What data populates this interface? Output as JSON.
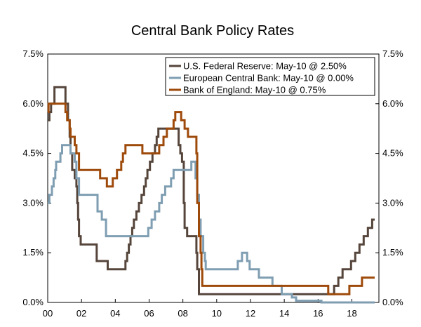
{
  "chart_data": {
    "type": "line",
    "title": "Central Bank Policy Rates",
    "xlabel": "",
    "ylabel": "",
    "xlim": [
      2000,
      2019.6
    ],
    "ylim": [
      0,
      7.5
    ],
    "y_ticks": [
      0,
      1.5,
      3.0,
      4.5,
      6.0,
      7.5
    ],
    "y_tick_labels": [
      "0.0%",
      "1.5%",
      "3.0%",
      "4.5%",
      "6.0%",
      "7.5%"
    ],
    "x_ticks": [
      2000,
      2002,
      2004,
      2006,
      2008,
      2010,
      2012,
      2014,
      2016,
      2018
    ],
    "x_tick_labels": [
      "00",
      "02",
      "04",
      "06",
      "08",
      "10",
      "12",
      "14",
      "16",
      "18"
    ],
    "grid": false,
    "legend_position": "top-right",
    "series": [
      {
        "name": "U.S. Federal Reserve: May-10 @ 2.50%",
        "color": "#55453b",
        "points": [
          [
            2000.0,
            5.5
          ],
          [
            2000.1,
            5.75
          ],
          [
            2000.2,
            6.0
          ],
          [
            2000.4,
            6.5
          ],
          [
            2001.0,
            6.5
          ],
          [
            2001.05,
            6.0
          ],
          [
            2001.2,
            5.5
          ],
          [
            2001.3,
            5.0
          ],
          [
            2001.35,
            4.5
          ],
          [
            2001.45,
            4.0
          ],
          [
            2001.6,
            3.75
          ],
          [
            2001.7,
            3.5
          ],
          [
            2001.75,
            3.0
          ],
          [
            2001.8,
            2.5
          ],
          [
            2001.85,
            2.0
          ],
          [
            2001.95,
            1.75
          ],
          [
            2002.85,
            1.75
          ],
          [
            2002.9,
            1.25
          ],
          [
            2003.5,
            1.25
          ],
          [
            2003.55,
            1.0
          ],
          [
            2004.5,
            1.0
          ],
          [
            2004.6,
            1.25
          ],
          [
            2004.7,
            1.5
          ],
          [
            2004.8,
            1.75
          ],
          [
            2004.9,
            2.0
          ],
          [
            2005.0,
            2.25
          ],
          [
            2005.1,
            2.5
          ],
          [
            2005.25,
            2.75
          ],
          [
            2005.4,
            3.0
          ],
          [
            2005.55,
            3.25
          ],
          [
            2005.7,
            3.5
          ],
          [
            2005.8,
            3.75
          ],
          [
            2005.9,
            4.0
          ],
          [
            2006.05,
            4.25
          ],
          [
            2006.2,
            4.5
          ],
          [
            2006.35,
            4.75
          ],
          [
            2006.45,
            5.0
          ],
          [
            2006.55,
            5.25
          ],
          [
            2007.7,
            5.25
          ],
          [
            2007.75,
            4.75
          ],
          [
            2007.85,
            4.5
          ],
          [
            2007.95,
            4.25
          ],
          [
            2008.05,
            3.0
          ],
          [
            2008.1,
            2.25
          ],
          [
            2008.25,
            2.0
          ],
          [
            2008.75,
            2.0
          ],
          [
            2008.8,
            1.5
          ],
          [
            2008.85,
            1.0
          ],
          [
            2008.95,
            0.25
          ],
          [
            2015.95,
            0.25
          ],
          [
            2016.95,
            0.5
          ],
          [
            2017.2,
            0.75
          ],
          [
            2017.45,
            1.0
          ],
          [
            2017.95,
            1.25
          ],
          [
            2018.2,
            1.5
          ],
          [
            2018.45,
            1.75
          ],
          [
            2018.7,
            2.0
          ],
          [
            2018.95,
            2.25
          ],
          [
            2019.2,
            2.5
          ],
          [
            2019.35,
            2.5
          ]
        ]
      },
      {
        "name": "European Central Bank: May-10 @ 0.00%",
        "color": "#7f9eb2",
        "points": [
          [
            2000.0,
            3.0
          ],
          [
            2000.1,
            3.25
          ],
          [
            2000.25,
            3.5
          ],
          [
            2000.35,
            3.75
          ],
          [
            2000.45,
            4.0
          ],
          [
            2000.5,
            4.25
          ],
          [
            2000.75,
            4.5
          ],
          [
            2000.85,
            4.75
          ],
          [
            2001.35,
            4.5
          ],
          [
            2001.6,
            4.25
          ],
          [
            2001.7,
            3.75
          ],
          [
            2001.85,
            3.25
          ],
          [
            2002.9,
            3.25
          ],
          [
            2002.95,
            2.75
          ],
          [
            2003.2,
            2.5
          ],
          [
            2003.45,
            2.0
          ],
          [
            2005.9,
            2.0
          ],
          [
            2005.95,
            2.25
          ],
          [
            2006.15,
            2.5
          ],
          [
            2006.35,
            2.75
          ],
          [
            2006.6,
            3.0
          ],
          [
            2006.75,
            3.25
          ],
          [
            2006.95,
            3.5
          ],
          [
            2007.3,
            3.75
          ],
          [
            2007.45,
            4.0
          ],
          [
            2008.5,
            4.25
          ],
          [
            2008.75,
            3.75
          ],
          [
            2008.85,
            3.25
          ],
          [
            2008.95,
            2.5
          ],
          [
            2009.05,
            2.0
          ],
          [
            2009.2,
            1.5
          ],
          [
            2009.3,
            1.25
          ],
          [
            2009.35,
            1.0
          ],
          [
            2011.25,
            1.25
          ],
          [
            2011.5,
            1.5
          ],
          [
            2011.8,
            1.25
          ],
          [
            2011.95,
            1.0
          ],
          [
            2012.5,
            0.75
          ],
          [
            2013.3,
            0.5
          ],
          [
            2013.85,
            0.25
          ],
          [
            2014.45,
            0.15
          ],
          [
            2014.7,
            0.05
          ],
          [
            2016.2,
            0.0
          ],
          [
            2019.35,
            0.0
          ]
        ]
      },
      {
        "name": "Bank of England: May-10 @ 0.75%",
        "color": "#9e4a0a",
        "points": [
          [
            2000.0,
            5.75
          ],
          [
            2000.05,
            6.0
          ],
          [
            2001.05,
            5.75
          ],
          [
            2001.15,
            5.5
          ],
          [
            2001.3,
            5.25
          ],
          [
            2001.35,
            5.0
          ],
          [
            2001.6,
            4.75
          ],
          [
            2001.7,
            4.5
          ],
          [
            2001.85,
            4.0
          ],
          [
            2003.1,
            3.75
          ],
          [
            2003.5,
            3.5
          ],
          [
            2003.85,
            3.75
          ],
          [
            2004.1,
            4.0
          ],
          [
            2004.35,
            4.25
          ],
          [
            2004.45,
            4.5
          ],
          [
            2004.6,
            4.75
          ],
          [
            2005.6,
            4.5
          ],
          [
            2006.6,
            4.75
          ],
          [
            2006.85,
            5.0
          ],
          [
            2007.05,
            5.25
          ],
          [
            2007.45,
            5.5
          ],
          [
            2007.55,
            5.75
          ],
          [
            2007.9,
            5.5
          ],
          [
            2008.1,
            5.25
          ],
          [
            2008.3,
            5.0
          ],
          [
            2008.8,
            4.5
          ],
          [
            2008.85,
            3.0
          ],
          [
            2008.95,
            2.0
          ],
          [
            2009.05,
            1.5
          ],
          [
            2009.1,
            1.0
          ],
          [
            2009.15,
            0.5
          ],
          [
            2016.6,
            0.25
          ],
          [
            2017.85,
            0.5
          ],
          [
            2018.6,
            0.75
          ],
          [
            2019.35,
            0.75
          ]
        ]
      }
    ]
  }
}
